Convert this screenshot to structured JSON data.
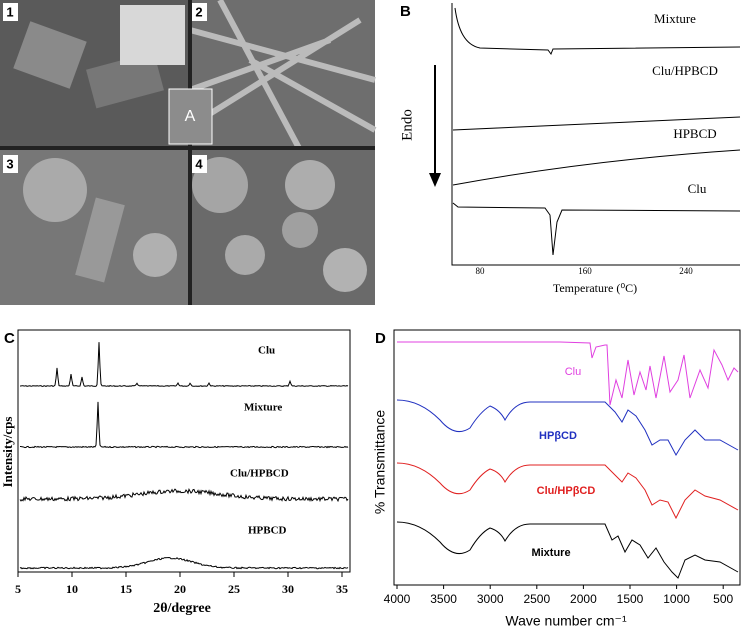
{
  "panels": {
    "a": {
      "label": "A",
      "images": [
        "1",
        "2",
        "3",
        "4"
      ]
    },
    "b": {
      "label": "B",
      "y_label": "Endo",
      "x_label": "Temperature (⁰C)",
      "x_ticks": [
        "80",
        "160",
        "240"
      ],
      "traces": [
        "Mixture",
        "Clu/HPBCD",
        "HPBCD",
        "Clu"
      ]
    },
    "c": {
      "label": "C",
      "y_label": "Intensity/cps",
      "x_label": "2θ/degree",
      "x_ticks": [
        "5",
        "10",
        "15",
        "20",
        "25",
        "30",
        "35"
      ],
      "traces": [
        "Clu",
        "Mixture",
        "Clu/HPBCD",
        "HPBCD"
      ]
    },
    "d": {
      "label": "D",
      "y_label": "% Transmittance",
      "x_label": "Wave number cm⁻¹",
      "x_ticks": [
        "4000",
        "3500",
        "3000",
        "2500",
        "2000",
        "1500",
        "1000",
        "500"
      ],
      "traces": [
        "Clu",
        "HPβCD",
        "Clu/HPβCD",
        "Mixture"
      ]
    }
  }
}
